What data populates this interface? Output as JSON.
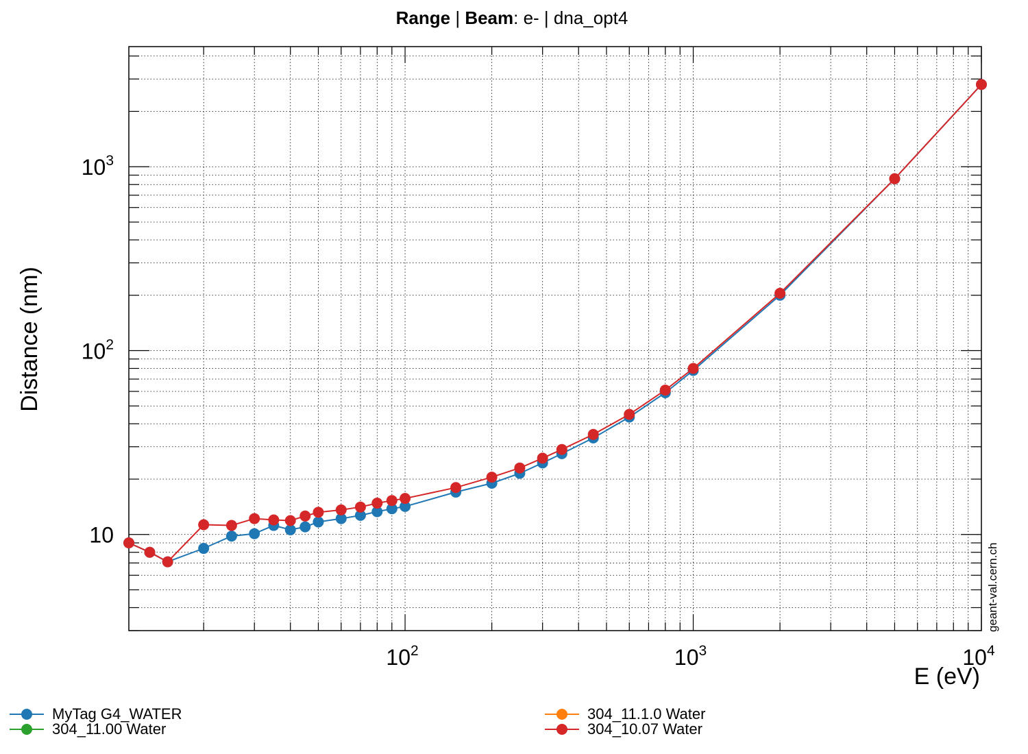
{
  "chart_data": {
    "type": "line",
    "title": {
      "part1_bold": "Range",
      "sep1": " | ",
      "part2_bold": "Beam",
      "part3": ": e- | dna_opt4"
    },
    "xlabel": "E (eV)",
    "ylabel": "Distance (nm)",
    "xscale": "log",
    "yscale": "log",
    "xlim": [
      11,
      10000
    ],
    "ylim": [
      3,
      4500
    ],
    "grid": true,
    "legend_position": "bottom",
    "x_tick_labels": [
      {
        "value": 100,
        "base": "10",
        "exp": "2"
      },
      {
        "value": 1000,
        "base": "10",
        "exp": "3"
      },
      {
        "value": 10000,
        "base": "10",
        "exp": "4"
      }
    ],
    "y_tick_labels": [
      {
        "value": 10,
        "base": "10",
        "exp": ""
      },
      {
        "value": 100,
        "base": "10",
        "exp": "2"
      },
      {
        "value": 1000,
        "base": "10",
        "exp": "3"
      }
    ],
    "watermark": "geant-val.cern.ch",
    "series": [
      {
        "name": "MyTag G4_WATER",
        "color": "#1f77b4",
        "x": [
          11,
          13,
          15,
          20,
          25,
          30,
          35,
          40,
          45,
          50,
          60,
          70,
          80,
          90,
          100,
          150,
          200,
          250,
          300,
          350,
          450,
          600,
          800,
          1000,
          2000,
          5000,
          10000
        ],
        "y": [
          9.0,
          8.0,
          7.1,
          8.4,
          9.8,
          10.1,
          11.2,
          10.6,
          11.0,
          11.7,
          12.2,
          12.7,
          13.3,
          13.8,
          14.2,
          17.0,
          19.0,
          21.5,
          24.5,
          27.5,
          33.5,
          43.5,
          59.0,
          78.0,
          200.0,
          860.0,
          2800.0
        ]
      },
      {
        "name": "304_11.00 Water",
        "color": "#2ca02c",
        "x": [],
        "y": []
      },
      {
        "name": "304_11.1.0 Water",
        "color": "#ff7f0e",
        "x": [],
        "y": []
      },
      {
        "name": "304_10.07 Water",
        "color": "#d62728",
        "x": [
          11,
          13,
          15,
          20,
          25,
          30,
          35,
          40,
          45,
          50,
          60,
          70,
          80,
          90,
          100,
          150,
          200,
          250,
          300,
          350,
          450,
          600,
          800,
          1000,
          2000,
          5000,
          10000
        ],
        "y": [
          9.0,
          8.0,
          7.1,
          11.3,
          11.2,
          12.2,
          12.0,
          11.9,
          12.6,
          13.2,
          13.6,
          14.1,
          14.8,
          15.3,
          15.7,
          18.0,
          20.5,
          23.0,
          26.0,
          29.0,
          35.0,
          45.0,
          61.0,
          80.0,
          205.0,
          860.0,
          2800.0
        ]
      }
    ]
  }
}
